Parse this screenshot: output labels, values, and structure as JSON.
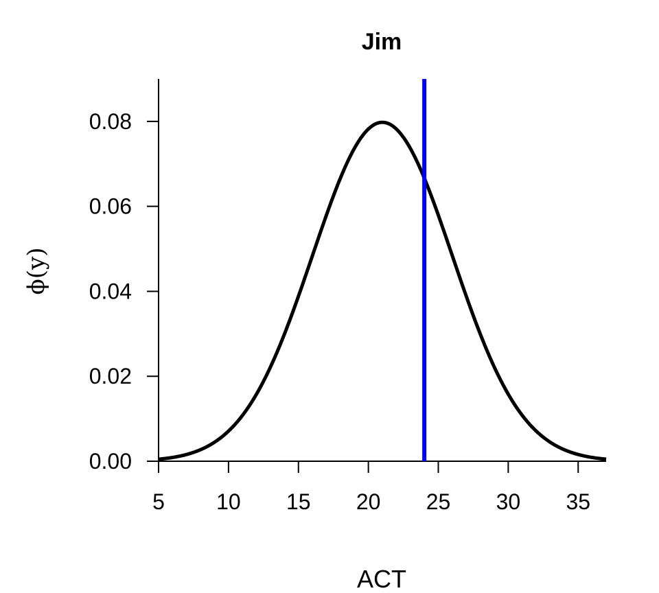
{
  "chart_data": {
    "type": "line",
    "title": "Jim",
    "xlabel": "ACT",
    "ylabel": "ϕ(y)",
    "xlim": [
      5,
      37
    ],
    "ylim": [
      0,
      0.09
    ],
    "x_ticks": [
      5,
      10,
      15,
      20,
      25,
      30,
      35
    ],
    "y_ticks": [
      "0.00",
      "0.02",
      "0.04",
      "0.06",
      "0.08"
    ],
    "series": [
      {
        "distribution": "normal",
        "mean": 21,
        "sd": 5,
        "x_range": [
          5,
          37
        ],
        "color": "#000000"
      }
    ],
    "reference_line": {
      "x": 24,
      "color": "#0000ff"
    },
    "grid": false
  }
}
